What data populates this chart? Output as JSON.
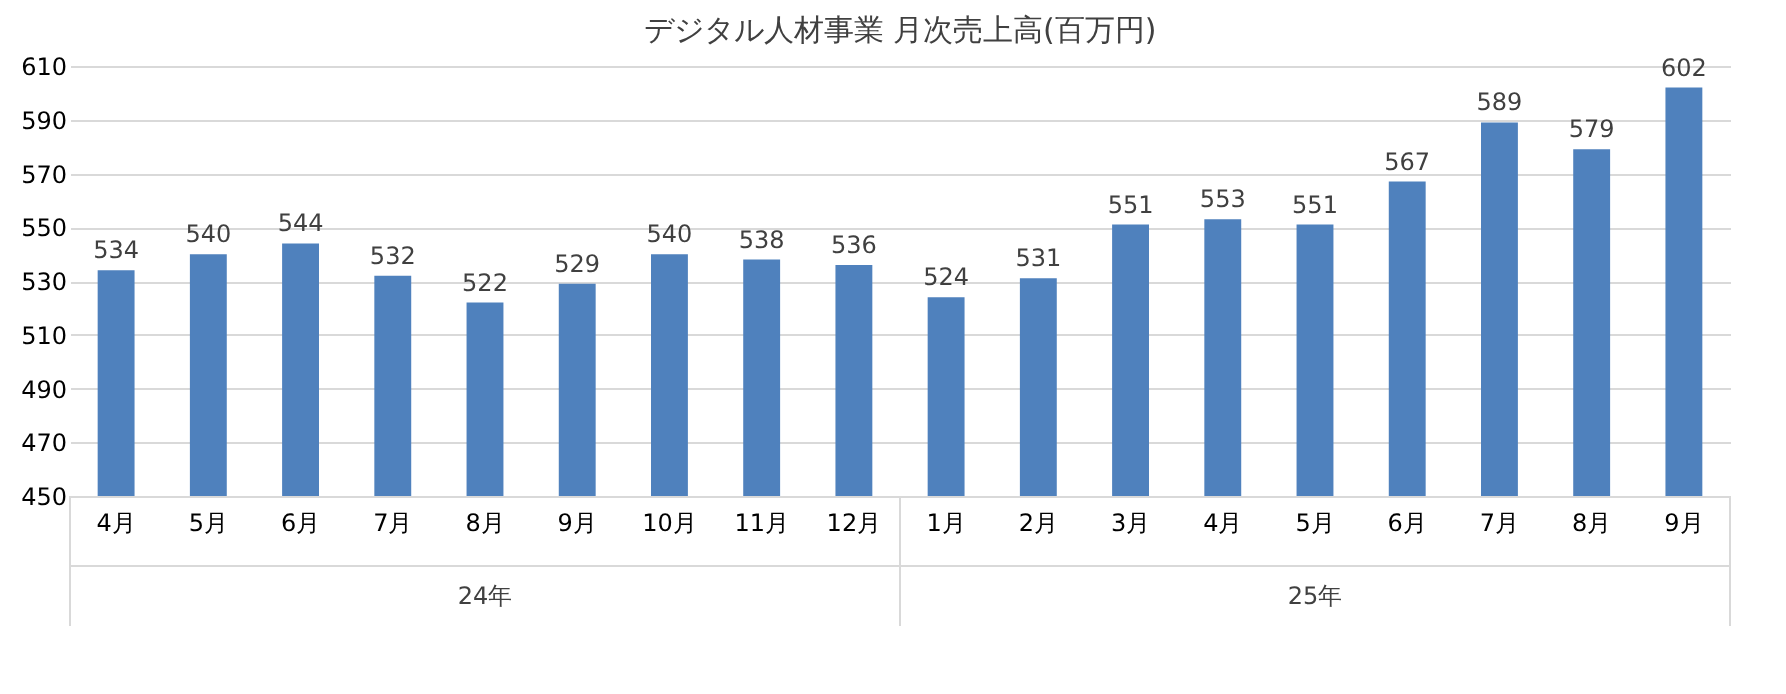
{
  "chart_data": {
    "type": "bar",
    "title": "デジタル人材事業 月次売上高(百万円)",
    "categories": [
      "4月",
      "5月",
      "6月",
      "7月",
      "8月",
      "9月",
      "10月",
      "11月",
      "12月",
      "1月",
      "2月",
      "3月",
      "4月",
      "5月",
      "6月",
      "7月",
      "8月",
      "9月"
    ],
    "values": [
      534,
      540,
      544,
      532,
      522,
      529,
      540,
      538,
      536,
      524,
      531,
      551,
      553,
      551,
      567,
      589,
      579,
      602
    ],
    "color": "#4f81bd",
    "ylim": [
      450,
      610
    ],
    "yticks": [
      450,
      470,
      490,
      510,
      530,
      550,
      570,
      590,
      610
    ],
    "grid": "y",
    "data_labels": true,
    "annotations": [
      "24年",
      "25年"
    ]
  }
}
